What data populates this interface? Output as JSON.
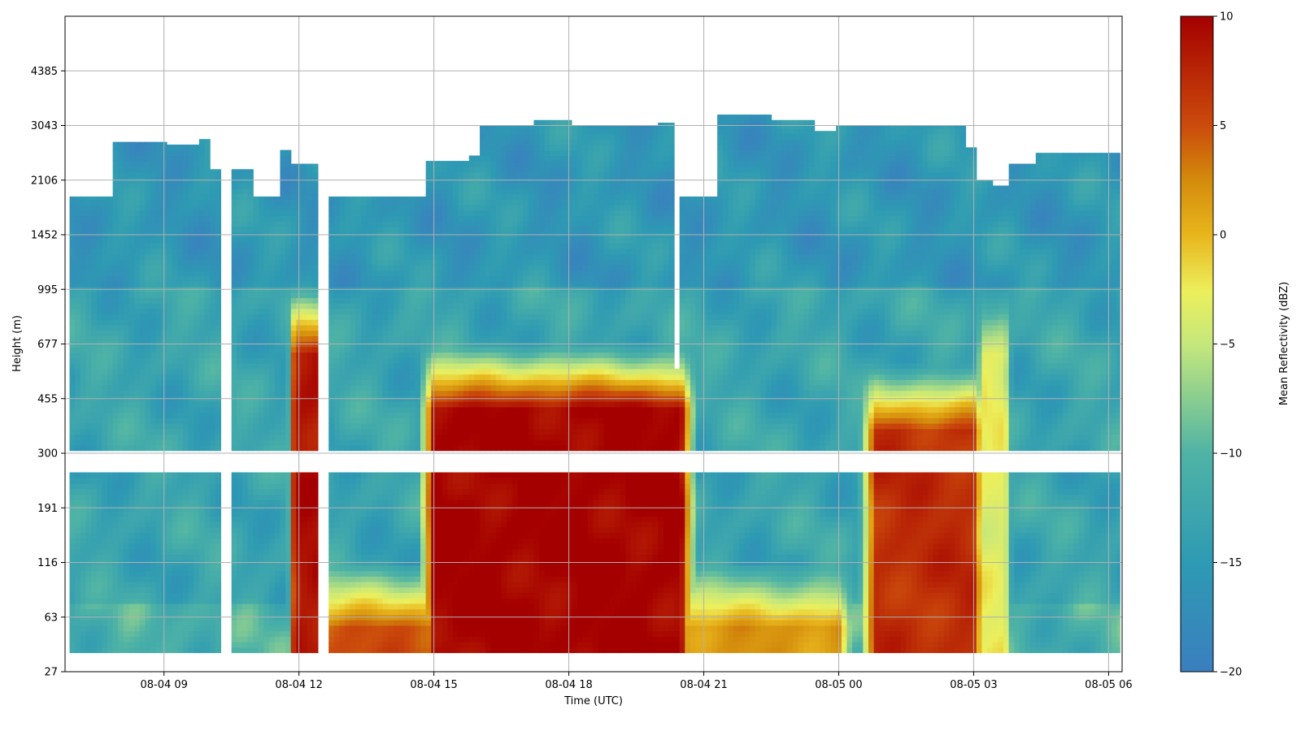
{
  "chart_data": {
    "type": "heatmap",
    "title": "",
    "xlabel": "Time (UTC)",
    "ylabel": "Height (m)",
    "colorbar_label": "Mean Reflectivity (dBZ)",
    "colormap": "RdYlBu_r",
    "clim": [
      -20,
      10
    ],
    "grid": true,
    "xlim_hours": [
      6.8,
      30.3
    ],
    "ylim_levels": [
      0,
      12
    ],
    "x_ticks": [
      {
        "hours": 9,
        "label": "08-04 09"
      },
      {
        "hours": 12,
        "label": "08-04 12"
      },
      {
        "hours": 15,
        "label": "08-04 15"
      },
      {
        "hours": 18,
        "label": "08-04 18"
      },
      {
        "hours": 21,
        "label": "08-04 21"
      },
      {
        "hours": 24,
        "label": "08-05 00"
      },
      {
        "hours": 27,
        "label": "08-05 03"
      },
      {
        "hours": 30,
        "label": "08-05 06"
      }
    ],
    "y_ticks": [
      {
        "level": 0,
        "label": "27"
      },
      {
        "level": 1,
        "label": "63"
      },
      {
        "level": 2,
        "label": "116"
      },
      {
        "level": 3,
        "label": "191"
      },
      {
        "level": 4,
        "label": "300"
      },
      {
        "level": 5,
        "label": "455"
      },
      {
        "level": 6,
        "label": "677"
      },
      {
        "level": 7,
        "label": "995"
      },
      {
        "level": 8,
        "label": "1452"
      },
      {
        "level": 9,
        "label": "2106"
      },
      {
        "level": 10,
        "label": "3043"
      },
      {
        "level": 11,
        "label": "4385"
      }
    ],
    "colorbar_ticks": [
      {
        "value": 10,
        "label": "10"
      },
      {
        "value": 5,
        "label": "5"
      },
      {
        "value": 0,
        "label": "0"
      },
      {
        "value": -5,
        "label": "−5"
      },
      {
        "value": -10,
        "label": "−10"
      },
      {
        "value": -15,
        "label": "−15"
      },
      {
        "value": -20,
        "label": "−20"
      }
    ],
    "data_time_range": [
      6.9,
      30.25
    ],
    "data_bottom_level": 0.35,
    "missing_level_band": [
      3.7,
      4.05
    ],
    "cloud_top_profile": [
      [
        6.9,
        8.7
      ],
      [
        7.8,
        8.7
      ],
      [
        7.9,
        9.7
      ],
      [
        8.5,
        9.7
      ],
      [
        9.0,
        9.65
      ],
      [
        9.8,
        9.75
      ],
      [
        10.0,
        9.2
      ],
      [
        10.3,
        9.2
      ],
      [
        11.0,
        8.7
      ],
      [
        11.5,
        8.7
      ],
      [
        11.6,
        9.55
      ],
      [
        11.8,
        9.3
      ],
      [
        12.4,
        9.3
      ],
      [
        12.7,
        8.7
      ],
      [
        14.7,
        8.7
      ],
      [
        14.8,
        9.35
      ],
      [
        15.8,
        9.45
      ],
      [
        16.0,
        10.0
      ],
      [
        17.2,
        10.1
      ],
      [
        18.0,
        10.0
      ],
      [
        20.0,
        10.05
      ],
      [
        20.3,
        10.1
      ],
      [
        20.5,
        8.7
      ],
      [
        21.2,
        8.7
      ],
      [
        21.3,
        10.2
      ],
      [
        22.5,
        10.1
      ],
      [
        23.5,
        9.9
      ],
      [
        24.0,
        10.0
      ],
      [
        25.5,
        10.0
      ],
      [
        26.8,
        9.6
      ],
      [
        27.1,
        9.0
      ],
      [
        27.4,
        8.9
      ],
      [
        27.8,
        9.3
      ],
      [
        28.4,
        9.5
      ],
      [
        29.5,
        9.5
      ],
      [
        30.25,
        9.5
      ]
    ],
    "data_gaps": [
      {
        "t": [
          10.3,
          10.55
        ],
        "levels": [
          0.35,
          12
        ]
      },
      {
        "t": [
          12.4,
          12.65
        ],
        "levels": [
          0.35,
          12
        ]
      },
      {
        "t": [
          20.3,
          20.5
        ],
        "levels": [
          5.5,
          12
        ]
      }
    ],
    "precip_events": [
      {
        "t_start": 11.9,
        "t_end": 12.4,
        "top_level": 7.0,
        "peak_dbz": 9,
        "kind": "shaft"
      },
      {
        "t_start": 15.0,
        "t_end": 20.5,
        "top_level": 6.0,
        "peak_dbz": 10,
        "kind": "rain"
      },
      {
        "t_start": 12.5,
        "t_end": 15.0,
        "top_level": 2.0,
        "peak_dbz": 5,
        "kind": "drizzle"
      },
      {
        "t_start": 20.5,
        "t_end": 24.0,
        "top_level": 2.0,
        "peak_dbz": 2,
        "kind": "drizzle"
      },
      {
        "t_start": 24.8,
        "t_end": 27.0,
        "top_level": 5.6,
        "peak_dbz": 7,
        "kind": "rain"
      },
      {
        "t_start": 27.2,
        "t_end": 27.7,
        "top_level": 7.0,
        "peak_dbz": -3,
        "kind": "shaft"
      }
    ]
  }
}
